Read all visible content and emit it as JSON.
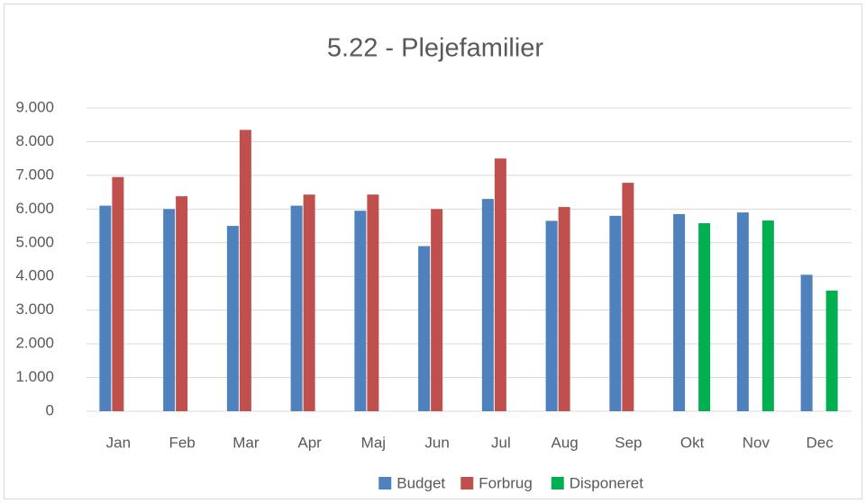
{
  "chart_data": {
    "type": "bar",
    "title": "5.22 - Plejefamilier",
    "categories": [
      "Jan",
      "Feb",
      "Mar",
      "Apr",
      "Maj",
      "Jun",
      "Jul",
      "Aug",
      "Sep",
      "Okt",
      "Nov",
      "Dec"
    ],
    "series": [
      {
        "name": "Budget",
        "color": "#4f81bd",
        "values": [
          6100,
          6000,
          5500,
          6100,
          5950,
          4900,
          6300,
          5650,
          5800,
          5850,
          5900,
          4050
        ]
      },
      {
        "name": "Forbrug",
        "color": "#c0504d",
        "values": [
          6950,
          6380,
          8350,
          6430,
          6430,
          6000,
          7500,
          6060,
          6780,
          null,
          null,
          null
        ]
      },
      {
        "name": "Disponeret",
        "color": "#00b050",
        "values": [
          null,
          null,
          null,
          null,
          null,
          null,
          null,
          null,
          null,
          5580,
          5660,
          3580
        ]
      }
    ],
    "ylim": [
      0,
      9000
    ],
    "yticks": [
      0,
      {
        "value": 1000,
        "label": "1.000"
      },
      {
        "value": 2000,
        "label": "2.000"
      },
      {
        "value": 3000,
        "label": "3.000"
      },
      {
        "value": 4000,
        "label": "4.000"
      },
      {
        "value": 5000,
        "label": "5.000"
      },
      {
        "value": 6000,
        "label": "6.000"
      },
      {
        "value": 7000,
        "label": "7.000"
      },
      {
        "value": 8000,
        "label": "8.000"
      },
      {
        "value": 9000,
        "label": "9.000"
      }
    ],
    "grid": true,
    "legend": "bottom"
  }
}
